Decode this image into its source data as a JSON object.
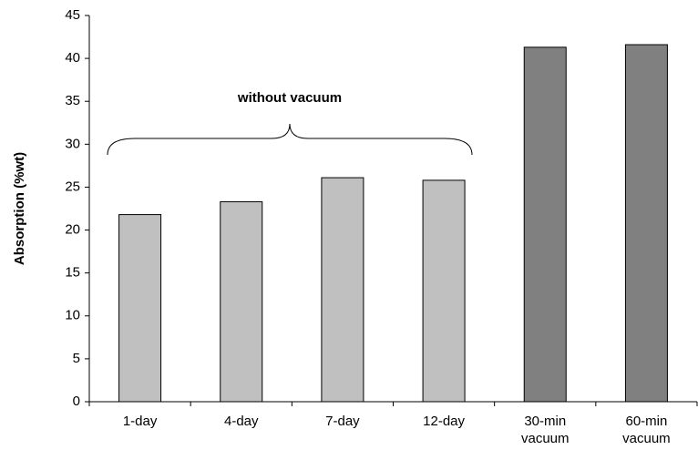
{
  "chart_data": {
    "type": "bar",
    "y_label": "Absorption (%wt)",
    "annotation": "without vacuum",
    "categories": [
      "1-day",
      "4-day",
      "7-day",
      "12-day",
      "30-min vacuum",
      "60-min vacuum"
    ],
    "values": [
      21.8,
      23.3,
      26.1,
      25.8,
      41.3,
      41.6
    ],
    "colors": [
      "#c0c0c0",
      "#c0c0c0",
      "#c0c0c0",
      "#c0c0c0",
      "#808080",
      "#808080"
    ],
    "ylim": [
      0,
      45
    ],
    "yticks": [
      0,
      5,
      10,
      15,
      20,
      25,
      30,
      35,
      40,
      45
    ],
    "grid": false
  }
}
